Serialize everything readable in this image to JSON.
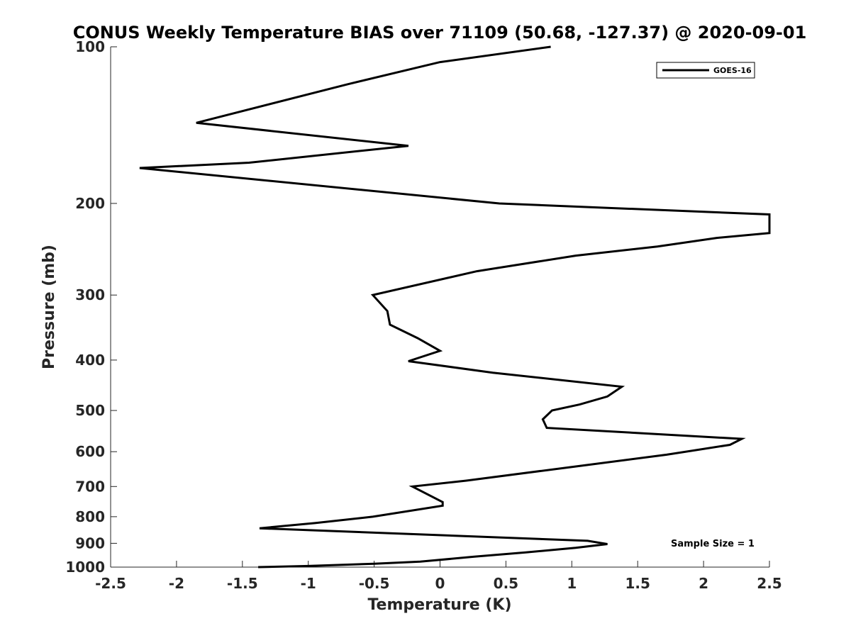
{
  "chart_data": {
    "type": "line",
    "title": "CONUS Weekly Temperature BIAS over 71109 (50.68, -127.37) @ 2020-09-01",
    "xlabel": "Temperature (K)",
    "ylabel": "Pressure (mb)",
    "xlim": [
      -2.5,
      2.5
    ],
    "ylim": [
      100,
      1000
    ],
    "yscale": "log",
    "yreversed": true,
    "grid": false,
    "legend": "top-right",
    "xticks": [
      -2.5,
      -2,
      -1.5,
      -1,
      -0.5,
      0,
      0.5,
      1,
      1.5,
      2,
      2.5
    ],
    "xtick_labels": [
      "-2.5",
      "-2",
      "-1.5",
      "-1",
      "-0.5",
      "0",
      "0.5",
      "1",
      "1.5",
      "2",
      "2.5"
    ],
    "yticks": [
      100,
      200,
      300,
      400,
      500,
      600,
      700,
      800,
      900,
      1000
    ],
    "ytick_labels": [
      "100",
      "200",
      "300",
      "400",
      "500",
      "600",
      "700",
      "800",
      "900",
      "1000"
    ],
    "annotation": "Sample Size = 1",
    "series": [
      {
        "name": "GOES-16",
        "color": "#000000",
        "points": [
          {
            "x": 0.84,
            "y": 100
          },
          {
            "x": 0.0,
            "y": 107
          },
          {
            "x": -0.7,
            "y": 118
          },
          {
            "x": -1.85,
            "y": 140
          },
          {
            "x": -0.24,
            "y": 155
          },
          {
            "x": -1.45,
            "y": 167
          },
          {
            "x": -2.28,
            "y": 171
          },
          {
            "x": 0.45,
            "y": 200
          },
          {
            "x": 2.5,
            "y": 210
          },
          {
            "x": 2.5,
            "y": 228
          },
          {
            "x": 2.1,
            "y": 233
          },
          {
            "x": 1.65,
            "y": 242
          },
          {
            "x": 1.03,
            "y": 252
          },
          {
            "x": 0.28,
            "y": 270
          },
          {
            "x": -0.51,
            "y": 300
          },
          {
            "x": -0.4,
            "y": 322
          },
          {
            "x": -0.38,
            "y": 342
          },
          {
            "x": -0.17,
            "y": 363
          },
          {
            "x": 0.0,
            "y": 384
          },
          {
            "x": -0.24,
            "y": 402
          },
          {
            "x": 0.4,
            "y": 423
          },
          {
            "x": 1.38,
            "y": 450
          },
          {
            "x": 1.27,
            "y": 470
          },
          {
            "x": 1.06,
            "y": 487
          },
          {
            "x": 0.85,
            "y": 500
          },
          {
            "x": 0.78,
            "y": 520
          },
          {
            "x": 0.81,
            "y": 540
          },
          {
            "x": 2.29,
            "y": 567
          },
          {
            "x": 2.2,
            "y": 582
          },
          {
            "x": 1.72,
            "y": 608
          },
          {
            "x": 1.0,
            "y": 642
          },
          {
            "x": 0.2,
            "y": 682
          },
          {
            "x": -0.21,
            "y": 700
          },
          {
            "x": 0.02,
            "y": 750
          },
          {
            "x": 0.02,
            "y": 762
          },
          {
            "x": -0.51,
            "y": 800
          },
          {
            "x": -0.95,
            "y": 823
          },
          {
            "x": -1.37,
            "y": 842
          },
          {
            "x": 1.12,
            "y": 890
          },
          {
            "x": 1.27,
            "y": 903
          },
          {
            "x": 1.03,
            "y": 918
          },
          {
            "x": 0.65,
            "y": 937
          },
          {
            "x": 0.26,
            "y": 955
          },
          {
            "x": -0.15,
            "y": 976
          },
          {
            "x": -0.5,
            "y": 985
          },
          {
            "x": -1.0,
            "y": 995
          },
          {
            "x": -1.38,
            "y": 1000
          }
        ]
      }
    ]
  }
}
